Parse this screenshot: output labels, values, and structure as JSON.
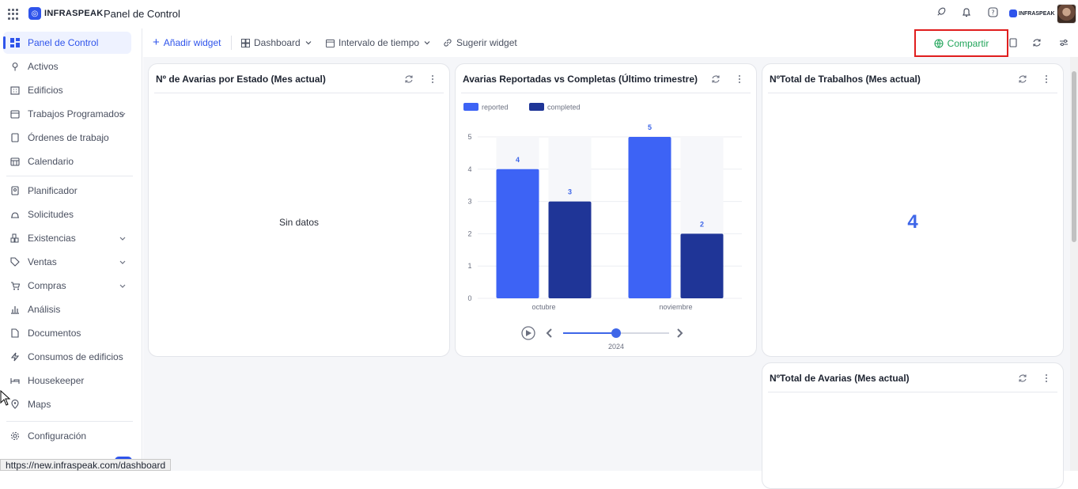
{
  "app": {
    "brand": "INFRASPEAK",
    "title": "Panel de Control",
    "brand_small": "INFRASPEAK"
  },
  "sidebar": {
    "items": [
      {
        "label": "Panel de Control"
      },
      {
        "label": "Activos"
      },
      {
        "label": "Edificios"
      },
      {
        "label": "Trabajos Programados"
      },
      {
        "label": "Órdenes de trabajo"
      },
      {
        "label": "Calendario"
      },
      {
        "label": "Planificador"
      },
      {
        "label": "Solicitudes"
      },
      {
        "label": "Existencias"
      },
      {
        "label": "Ventas"
      },
      {
        "label": "Compras"
      },
      {
        "label": "Análisis"
      },
      {
        "label": "Documentos"
      },
      {
        "label": "Consumos de edificios"
      },
      {
        "label": "Housekeeper"
      },
      {
        "label": "Maps"
      },
      {
        "label": "Configuración"
      }
    ]
  },
  "toolbar": {
    "add_widget": "Añadir widget",
    "dashboard": "Dashboard",
    "time_interval": "Intervalo de tiempo",
    "suggest_widget": "Sugerir widget",
    "share": "Compartir"
  },
  "widgets": {
    "w1": {
      "title": "Nº de Avarias por Estado (Mes actual)",
      "empty": "Sin datos"
    },
    "w2": {
      "title": "Avarias Reportadas vs Completas (Último trimestre)"
    },
    "w3": {
      "title": "NºTotal de Trabalhos (Mes actual)",
      "value": "4"
    },
    "w4": {
      "title": "NºTotal de Avarias (Mes actual)"
    }
  },
  "chart_data": {
    "type": "bar",
    "title": "",
    "categories": [
      "octubre",
      "noviembre"
    ],
    "series": [
      {
        "name": "reported",
        "values": [
          4,
          5
        ],
        "color": "#3d63f5"
      },
      {
        "name": "completed",
        "values": [
          3,
          2
        ],
        "color": "#1f3597"
      }
    ],
    "yticks": [
      "0",
      "1",
      "2",
      "3",
      "4",
      "5"
    ],
    "ylim": [
      0,
      5
    ],
    "grid": true,
    "legend": "top-left",
    "timeline_label": "2024",
    "timeline_position": 0.5
  },
  "status": {
    "url": "https://new.infraspeak.com/dashboard"
  },
  "colors": {
    "accent": "#2f54eb",
    "share": "#22a55b",
    "highlight": "#e01e1e"
  }
}
